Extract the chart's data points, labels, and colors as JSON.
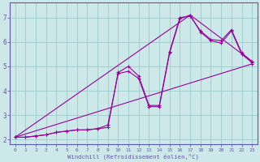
{
  "xlabel": "Windchill (Refroidissement éolien,°C)",
  "bg_color": "#cce8e8",
  "line_color": "#990099",
  "grid_color": "#99cccc",
  "axis_color": "#6655aa",
  "text_color": "#6655aa",
  "xlim": [
    -0.5,
    23.5
  ],
  "ylim": [
    1.8,
    7.6
  ],
  "xticks": [
    0,
    1,
    2,
    3,
    4,
    5,
    6,
    7,
    8,
    9,
    10,
    11,
    12,
    13,
    14,
    15,
    16,
    17,
    18,
    19,
    20,
    21,
    22,
    23
  ],
  "yticks": [
    2,
    3,
    4,
    5,
    6,
    7
  ],
  "series": [
    [
      [
        0,
        1,
        2,
        3,
        4,
        5,
        6,
        7,
        8,
        9,
        10,
        11,
        12,
        13,
        14,
        15,
        16,
        17,
        18,
        19,
        20,
        21,
        22,
        23
      ],
      [
        2.1,
        2.1,
        2.15,
        2.2,
        2.3,
        2.35,
        2.4,
        2.4,
        2.45,
        2.5,
        4.75,
        5.0,
        4.6,
        3.4,
        3.4,
        5.6,
        7.0,
        7.05,
        6.45,
        6.1,
        6.05,
        6.5,
        5.55,
        5.2
      ]
    ],
    [
      [
        0,
        1,
        2,
        3,
        4,
        5,
        6,
        7,
        8,
        9,
        10,
        11,
        12,
        13,
        14,
        15,
        16,
        17,
        18,
        19,
        20,
        21,
        22,
        23
      ],
      [
        2.1,
        2.1,
        2.15,
        2.2,
        2.3,
        2.35,
        2.4,
        2.4,
        2.45,
        2.6,
        4.7,
        4.8,
        4.5,
        3.35,
        3.35,
        5.55,
        6.95,
        7.1,
        6.4,
        6.05,
        5.95,
        6.45,
        5.5,
        5.15
      ]
    ],
    [
      [
        0,
        23
      ],
      [
        2.1,
        5.1
      ]
    ],
    [
      [
        0,
        17,
        23
      ],
      [
        2.1,
        7.1,
        5.2
      ]
    ]
  ]
}
